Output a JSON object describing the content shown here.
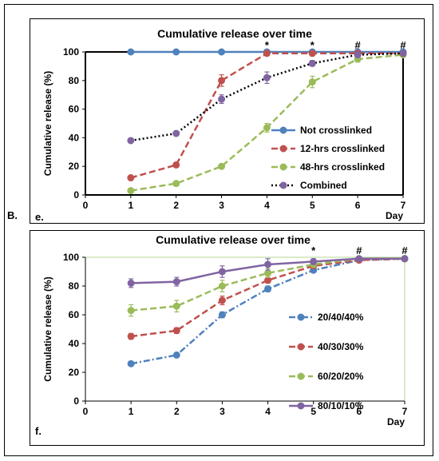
{
  "figure": {
    "side_label": "B."
  },
  "chart_data": [
    {
      "type": "line",
      "panel_label": "e.",
      "title": "Cumulative release over time",
      "xlabel": "Day",
      "ylabel": "Cumulative release  (%)",
      "xlim": [
        0,
        7
      ],
      "ylim": [
        0,
        100
      ],
      "xticks": [
        0,
        1,
        2,
        3,
        4,
        5,
        6,
        7
      ],
      "yticks": [
        0,
        20,
        40,
        60,
        80,
        100
      ],
      "grid": false,
      "legend_position": "bottom-right",
      "significance_markers": [
        {
          "x": 4,
          "symbol": "*"
        },
        {
          "x": 5,
          "symbol": "*"
        },
        {
          "x": 6,
          "symbol": "#"
        },
        {
          "x": 7,
          "symbol": "#"
        }
      ],
      "series": [
        {
          "name": "Not crosslinked",
          "color": "#4f81bd",
          "dash": "solid",
          "x": [
            1,
            2,
            3,
            4,
            5,
            6,
            7
          ],
          "y": [
            100,
            100,
            100,
            100,
            100,
            100,
            100
          ],
          "err": [
            0,
            0,
            0,
            0,
            0,
            0,
            0
          ]
        },
        {
          "name": "12-hrs crosslinked",
          "color": "#c0504d",
          "dash": "dash",
          "x": [
            1,
            2,
            3,
            4,
            5,
            6,
            7
          ],
          "y": [
            12,
            21,
            80,
            99,
            99,
            99,
            99
          ],
          "err": [
            1,
            1,
            4,
            1,
            1,
            1,
            1
          ]
        },
        {
          "name": "48-hrs crosslinked",
          "color": "#9bbb59",
          "dash": "dash",
          "x": [
            1,
            2,
            3,
            4,
            5,
            6,
            7
          ],
          "y": [
            3,
            8,
            20,
            47,
            79,
            95,
            98
          ],
          "err": [
            1,
            1,
            1,
            3,
            4,
            2,
            1
          ]
        },
        {
          "name": "Combined",
          "color": "#8064a2",
          "line_color": "#000000",
          "dash": "dot",
          "x": [
            1,
            2,
            3,
            4,
            5,
            6,
            7
          ],
          "y": [
            38,
            43,
            67,
            82,
            92,
            98,
            99
          ],
          "err": [
            1,
            1,
            3,
            4,
            2,
            1,
            1
          ]
        }
      ]
    },
    {
      "type": "line",
      "panel_label": "f.",
      "title": "Cumulative release over time",
      "xlabel": "Day",
      "ylabel": "Cumulative release  (%)",
      "xlim": [
        0,
        7
      ],
      "ylim": [
        0,
        100
      ],
      "xticks": [
        0,
        1,
        2,
        3,
        4,
        5,
        6,
        7
      ],
      "yticks": [
        0,
        20,
        40,
        60,
        80,
        100
      ],
      "grid": false,
      "legend_position": "bottom-right",
      "significance_markers": [
        {
          "x": 5,
          "symbol": "*"
        },
        {
          "x": 6,
          "symbol": "#"
        },
        {
          "x": 7,
          "symbol": "#"
        }
      ],
      "series": [
        {
          "name": "20/40/40%",
          "color": "#4f81bd",
          "dash": "dashdot",
          "x": [
            1,
            2,
            3,
            4,
            5,
            6,
            7
          ],
          "y": [
            26,
            32,
            60,
            78,
            91,
            98,
            99
          ],
          "err": [
            1,
            1,
            2,
            2,
            1,
            1,
            1
          ]
        },
        {
          "name": "40/30/30%",
          "color": "#c0504d",
          "dash": "dash",
          "x": [
            1,
            2,
            3,
            4,
            5,
            6,
            7
          ],
          "y": [
            45,
            49,
            70,
            84,
            94,
            98,
            99
          ],
          "err": [
            2,
            2,
            3,
            2,
            1,
            1,
            1
          ]
        },
        {
          "name": "60/20/20%",
          "color": "#9bbb59",
          "dash": "dash",
          "x": [
            1,
            2,
            3,
            4,
            5,
            6,
            7
          ],
          "y": [
            63,
            66,
            80,
            89,
            95,
            99,
            99
          ],
          "err": [
            4,
            4,
            4,
            3,
            2,
            1,
            1
          ]
        },
        {
          "name": "80/10/10%",
          "color": "#8064a2",
          "dash": "solid",
          "x": [
            1,
            2,
            3,
            4,
            5,
            6,
            7
          ],
          "y": [
            82,
            83,
            90,
            95,
            97,
            99,
            99
          ],
          "err": [
            3,
            3,
            4,
            4,
            2,
            1,
            1
          ]
        }
      ]
    }
  ]
}
